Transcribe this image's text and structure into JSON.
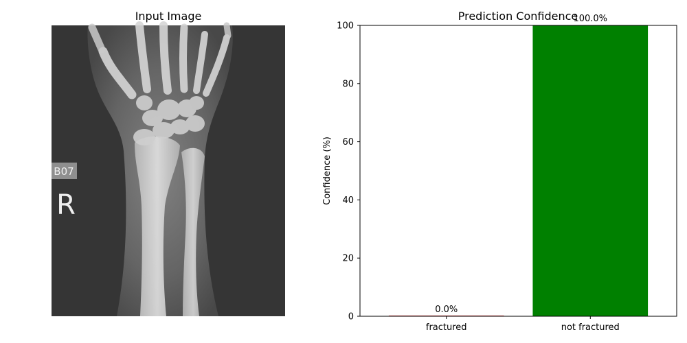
{
  "left_panel": {
    "title": "Input Image",
    "image": {
      "subject": "wrist x-ray",
      "marker_label": "B07",
      "side_marker": "R"
    }
  },
  "chart_data": {
    "type": "bar",
    "title": "Prediction Confidence",
    "categories": [
      "fractured",
      "not fractured"
    ],
    "values": [
      0.0,
      100.0
    ],
    "value_labels": [
      "0.0%",
      "100.0%"
    ],
    "colors": [
      "#d62728",
      "#008000"
    ],
    "xlabel": "",
    "ylabel": "Confidence (%)",
    "ylim": [
      0,
      100
    ],
    "yticks": [
      0,
      20,
      40,
      60,
      80,
      100
    ],
    "grid": false
  }
}
